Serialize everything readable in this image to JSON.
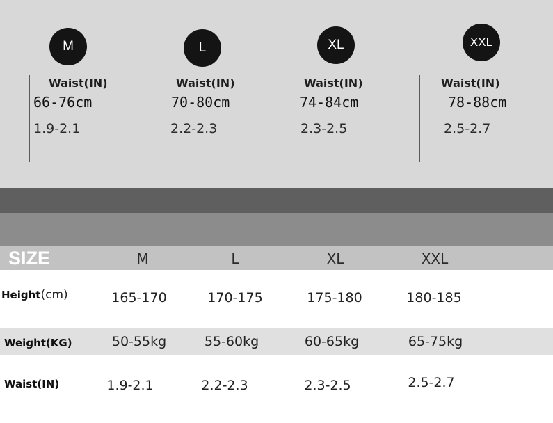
{
  "top_sizes": [
    {
      "badge": "M",
      "waist_label": "Waist(IN)",
      "cm": "66-76cm",
      "inches": "1.9-2.1"
    },
    {
      "badge": "L",
      "waist_label": "Waist(IN)",
      "cm": "70-80cm",
      "inches": "2.2-2.3"
    },
    {
      "badge": "XL",
      "waist_label": "Waist(IN)",
      "cm": "74-84cm",
      "inches": "2.3-2.5"
    },
    {
      "badge": "XXL",
      "waist_label": "Waist(IN)",
      "cm": "78-88cm",
      "inches": "2.5-2.7"
    }
  ],
  "table": {
    "title": "SIZE",
    "columns": [
      "M",
      "L",
      "XL",
      "XXL"
    ],
    "rows": [
      {
        "label": "Height",
        "unit": "(cm)",
        "values": [
          "165-170",
          "170-175",
          "175-180",
          "180-185"
        ]
      },
      {
        "label": "Weight(KG)",
        "unit": "",
        "values": [
          "50-55kg",
          "55-60kg",
          "60-65kg",
          "65-75kg"
        ]
      },
      {
        "label": "Waist(IN)",
        "unit": "",
        "values": [
          "1.9-2.1",
          "2.2-2.3",
          "2.3-2.5",
          "2.5-2.7"
        ]
      }
    ]
  },
  "colors": {
    "panel": "#d8d8d8",
    "band_dark": "#5f5f5f",
    "band_mid": "#8c8c8c",
    "header_band": "#c2c2c2",
    "badge": "#141414",
    "weight_row": "#e0e0e0"
  }
}
